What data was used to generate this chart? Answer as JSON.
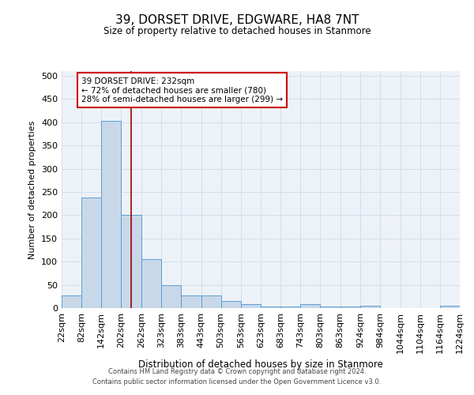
{
  "title": "39, DORSET DRIVE, EDGWARE, HA8 7NT",
  "subtitle": "Size of property relative to detached houses in Stanmore",
  "xlabel": "Distribution of detached houses by size in Stanmore",
  "ylabel": "Number of detached properties",
  "bin_labels": [
    "22sqm",
    "82sqm",
    "142sqm",
    "202sqm",
    "262sqm",
    "323sqm",
    "383sqm",
    "443sqm",
    "503sqm",
    "563sqm",
    "623sqm",
    "683sqm",
    "743sqm",
    "803sqm",
    "863sqm",
    "924sqm",
    "984sqm",
    "1044sqm",
    "1104sqm",
    "1164sqm",
    "1224sqm"
  ],
  "bin_edges": [
    22,
    82,
    142,
    202,
    262,
    323,
    383,
    443,
    503,
    563,
    623,
    683,
    743,
    803,
    863,
    924,
    984,
    1044,
    1104,
    1164,
    1224
  ],
  "bar_heights": [
    27,
    238,
    403,
    200,
    105,
    49,
    27,
    27,
    15,
    9,
    4,
    4,
    8,
    3,
    3,
    5,
    0,
    0,
    0,
    5
  ],
  "bar_color": "#c8d8e8",
  "bar_edge_color": "#5a9fd4",
  "grid_color": "#d0dce8",
  "background_color": "#edf2f8",
  "vline_x": 232,
  "vline_color": "#990000",
  "annotation_line1": "39 DORSET DRIVE: 232sqm",
  "annotation_line2": "← 72% of detached houses are smaller (780)",
  "annotation_line3": "28% of semi-detached houses are larger (299) →",
  "annotation_box_color": "#ffffff",
  "annotation_box_edge": "#cc0000",
  "footer_line1": "Contains HM Land Registry data © Crown copyright and database right 2024.",
  "footer_line2": "Contains public sector information licensed under the Open Government Licence v3.0.",
  "ylim": [
    0,
    510
  ],
  "yticks": [
    0,
    50,
    100,
    150,
    200,
    250,
    300,
    350,
    400,
    450,
    500
  ]
}
